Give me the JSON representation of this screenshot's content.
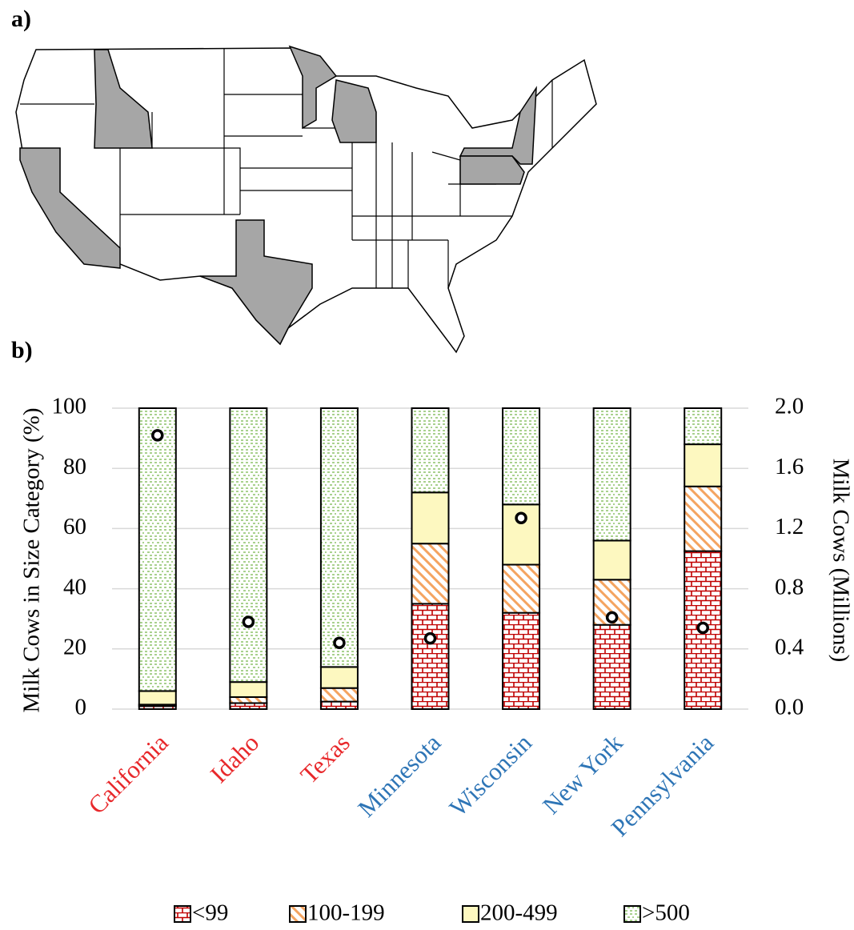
{
  "panel_labels": [
    "a)",
    "b)"
  ],
  "chart_data": {
    "type": "stacked_bar",
    "categories": [
      "California",
      "Idaho",
      "Texas",
      "Minnesota",
      "Wisconsin",
      "New York",
      "Pennsylvania"
    ],
    "category_colors": [
      "#e8282b",
      "#e8282b",
      "#e8282b",
      "#2e75b6",
      "#2e75b6",
      "#2e75b6",
      "#2e75b6"
    ],
    "series": [
      {
        "name": "<99",
        "color": "#c00000",
        "values": [
          1,
          2,
          2.5,
          35,
          32,
          28,
          52.5
        ]
      },
      {
        "name": "100-199",
        "color": "#f4a460",
        "values": [
          0.5,
          2,
          4.5,
          20,
          16,
          15,
          21.5
        ]
      },
      {
        "name": "200-499",
        "color": "#fdf8c0",
        "values": [
          4.5,
          5,
          7,
          17,
          20,
          13,
          14
        ]
      },
      {
        "name": ">500",
        "color": "#a9d18e",
        "values": [
          94,
          91,
          86,
          28,
          32,
          44,
          12
        ]
      }
    ],
    "markers": {
      "axis": "y2",
      "values": [
        1.82,
        0.58,
        0.44,
        0.47,
        1.27,
        0.61,
        0.54
      ]
    },
    "ylabel": "Milk Cows in Size Category (%)",
    "y2label": "Milk Cows (Millions)",
    "ylim": [
      0,
      100
    ],
    "yticks": [
      0,
      20,
      40,
      60,
      80,
      100
    ],
    "y2lim": [
      0,
      2
    ],
    "y2ticks": [
      {
        "value": 0,
        "label": "0.0"
      },
      0.4,
      0.8,
      1.2,
      1.6,
      {
        "value": 2,
        "label": "2.0"
      }
    ],
    "grid": true
  }
}
